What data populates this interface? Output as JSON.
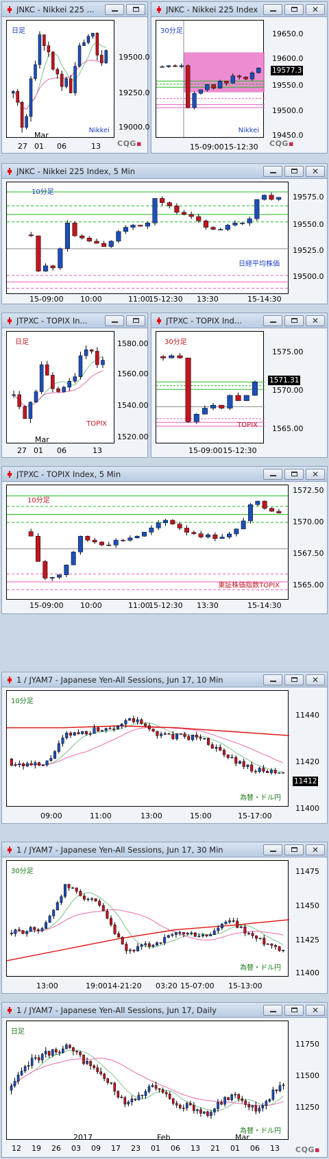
{
  "windows": [
    {
      "id": "w1",
      "title": "JNKC - Nikkei 225 ...",
      "timeframe": "日足",
      "symbol_label": "Nikkei",
      "brand": "CQG",
      "y_ticks": [
        "19500.0",
        "19250.0",
        "19000.0"
      ],
      "x_ticks": [
        "27",
        "01",
        "06",
        "13"
      ],
      "x_sub": "Mar"
    },
    {
      "id": "w2",
      "title": "JNKC - Nikkei 225 Index",
      "timeframe": "30分足",
      "symbol_label": "Nikkei",
      "brand": "CQG",
      "y_ticks": [
        "19650.0",
        "19600.0",
        "19550.0",
        "19500.0",
        "19450.0"
      ],
      "x_ticks": [
        "15-09:00",
        "15-12:30"
      ],
      "last_price": "19577.3"
    },
    {
      "id": "w3",
      "title": "JNKC - Nikkei 225 Index, 5 Min",
      "timeframe": "10分足",
      "symbol_label": "日経平均株価",
      "y_ticks": [
        "19575.0",
        "19550.0",
        "19525.0",
        "19500.0"
      ],
      "x_ticks": [
        "15-09:00",
        "10:00",
        "11:00",
        "15-12:30",
        "13:30",
        "15-14:30"
      ]
    },
    {
      "id": "w4",
      "title": "JTPXC - TOPIX In...",
      "timeframe": "日足",
      "symbol_label": "TOPIX",
      "y_ticks": [
        "1580.00",
        "1560.00",
        "1540.00",
        "1520.00"
      ],
      "x_ticks": [
        "27",
        "01",
        "06",
        "13"
      ],
      "x_sub": "Mar"
    },
    {
      "id": "w5",
      "title": "JTPXC - TOPIX Ind...",
      "timeframe": "30分足",
      "symbol_label": "TOPIX",
      "y_ticks": [
        "1575.00",
        "1570.00",
        "1565.00"
      ],
      "x_ticks": [
        "15-09:00",
        "15-12:30"
      ],
      "last_price": "1571.31"
    },
    {
      "id": "w6",
      "title": "JTPXC - TOPIX Index, 5 Min",
      "timeframe": "10分足",
      "symbol_label": "東証株価指数TOPIX",
      "y_ticks": [
        "1572.50",
        "1570.00",
        "1567.50",
        "1565.00"
      ],
      "x_ticks": [
        "15-09:00",
        "10:00",
        "11:00",
        "15-12:30",
        "13:30",
        "15-14:30"
      ]
    },
    {
      "id": "w7",
      "title": "1 / JYAM7 - Japanese Yen-All Sessions, Jun 17, 10 Min",
      "timeframe": "10分足",
      "symbol_label": "為替・ドル円",
      "y_ticks": [
        "11440",
        "11420",
        "11400"
      ],
      "x_ticks": [
        "09:00",
        "11:00",
        "13:00",
        "15:00",
        "15-17:00"
      ],
      "last_price": "11412"
    },
    {
      "id": "w8",
      "title": "1 / JYAM7 - Japanese Yen-All Sessions, Jun 17, 30 Min",
      "timeframe": "30分足",
      "symbol_label": "為替・ドル円",
      "y_ticks": [
        "11475",
        "11450",
        "11425",
        "11400"
      ],
      "x_ticks": [
        "13:00",
        "19:00",
        "14-21:20",
        "03:20",
        "15-07:00",
        "15-13:00"
      ]
    },
    {
      "id": "w9",
      "title": "1 / JYAM7 - Japanese Yen-All Sessions, Jun 17, Daily",
      "timeframe": "日足",
      "symbol_label": "為替・ドル円",
      "brand": "CQG",
      "y_ticks": [
        "11750",
        "11500",
        "11250"
      ],
      "x_ticks": [
        "12",
        "19",
        "26",
        "03",
        "09",
        "17",
        "23",
        "01",
        "06",
        "13",
        "21",
        "01",
        "06",
        "13"
      ],
      "x_sub": [
        "2017",
        "Feb",
        "Mar"
      ]
    }
  ],
  "colors": {
    "up": "#1c4fb8",
    "down": "#c01620",
    "ma_green": "#7cc28a",
    "ma_pink": "#e86aa8",
    "level_green": "#1fb81f",
    "level_pink": "#e85cc0",
    "zone": "#e879c8",
    "red_line": "#e01010",
    "bg": "#c9d6e3"
  },
  "chart_data": [
    {
      "panel": "w1",
      "type": "candlestick",
      "title": "JNKC - Nikkei 225 ...",
      "timeframe": "日足",
      "ylim": [
        18950,
        19700
      ],
      "close": [
        19250,
        19180,
        19020,
        19090,
        19330,
        19420,
        19610,
        19540,
        19500,
        19390,
        19360,
        19280,
        19330,
        19240,
        19410,
        19540,
        19560,
        19600,
        19620,
        19480,
        19430,
        19510
      ],
      "x_ticks": [
        "27",
        "01",
        "06",
        "13"
      ]
    },
    {
      "panel": "w2",
      "type": "candlestick",
      "title": "JNKC - Nikkei 225 Index",
      "timeframe": "30分足",
      "ylim": [
        19440,
        19670
      ],
      "close": [
        19580,
        19582,
        19580,
        19582,
        19500,
        19528,
        19535,
        19545,
        19538,
        19552,
        19548,
        19562,
        19560,
        19556,
        19568,
        19577.3
      ],
      "zone": [
        19530,
        19608
      ],
      "last_price": 19577.3
    },
    {
      "panel": "w3",
      "type": "candlestick",
      "title": "JNKC - Nikkei 225 Index, 5 Min",
      "timeframe": "10分足",
      "ylim": [
        19485,
        19590
      ],
      "close": [
        19540,
        19507,
        19512,
        19510,
        19528,
        19552,
        19540,
        19538,
        19535,
        19533,
        19530,
        19535,
        19544,
        19548,
        19550,
        19549,
        19552,
        19575,
        19571,
        19568,
        19562,
        19560,
        19558,
        19554,
        19548,
        19546,
        19546,
        19550,
        19552,
        19552,
        19556,
        19574,
        19578,
        19574,
        19576
      ]
    },
    {
      "panel": "w4",
      "type": "candlestick",
      "title": "JTPXC - TOPIX In...",
      "timeframe": "日足",
      "ylim": [
        1515,
        1590
      ],
      "close": [
        1548,
        1540,
        1532,
        1543,
        1550,
        1568,
        1561,
        1552,
        1550,
        1553,
        1557,
        1560,
        1574,
        1578,
        1577,
        1568,
        1571
      ]
    },
    {
      "panel": "w5",
      "type": "candlestick",
      "title": "JTPXC - TOPIX Ind...",
      "timeframe": "30分足",
      "ylim": [
        1563,
        1578
      ],
      "close": [
        1574.5,
        1574.8,
        1574.5,
        1566,
        1567,
        1567.8,
        1568.2,
        1567.8,
        1569.5,
        1568.8,
        1569.5,
        1571.3
      ],
      "last_price": 1571.31
    },
    {
      "panel": "w6",
      "type": "candlestick",
      "title": "JTPXC - TOPIX Index, 5 Min",
      "timeframe": "10分足",
      "ylim": [
        1564.3,
        1573
      ]
    },
    {
      "panel": "w7",
      "type": "candlestick",
      "title": "1 / JYAM7 - Japanese Yen-All Sessions, Jun 17, 10 Min",
      "timeframe": "10分足",
      "ylim": [
        11395,
        11455
      ],
      "last_price": 11412
    },
    {
      "panel": "w8",
      "type": "candlestick",
      "title": "1 / JYAM7 - Japanese Yen-All Sessions, Jun 17, 30 Min",
      "timeframe": "30分足",
      "ylim": [
        11385,
        11490
      ]
    },
    {
      "panel": "w9",
      "type": "candlestick",
      "title": "1 / JYAM7 - Japanese Yen-All Sessions, Jun 17, Daily",
      "timeframe": "日足",
      "ylim": [
        11050,
        11880
      ]
    }
  ]
}
